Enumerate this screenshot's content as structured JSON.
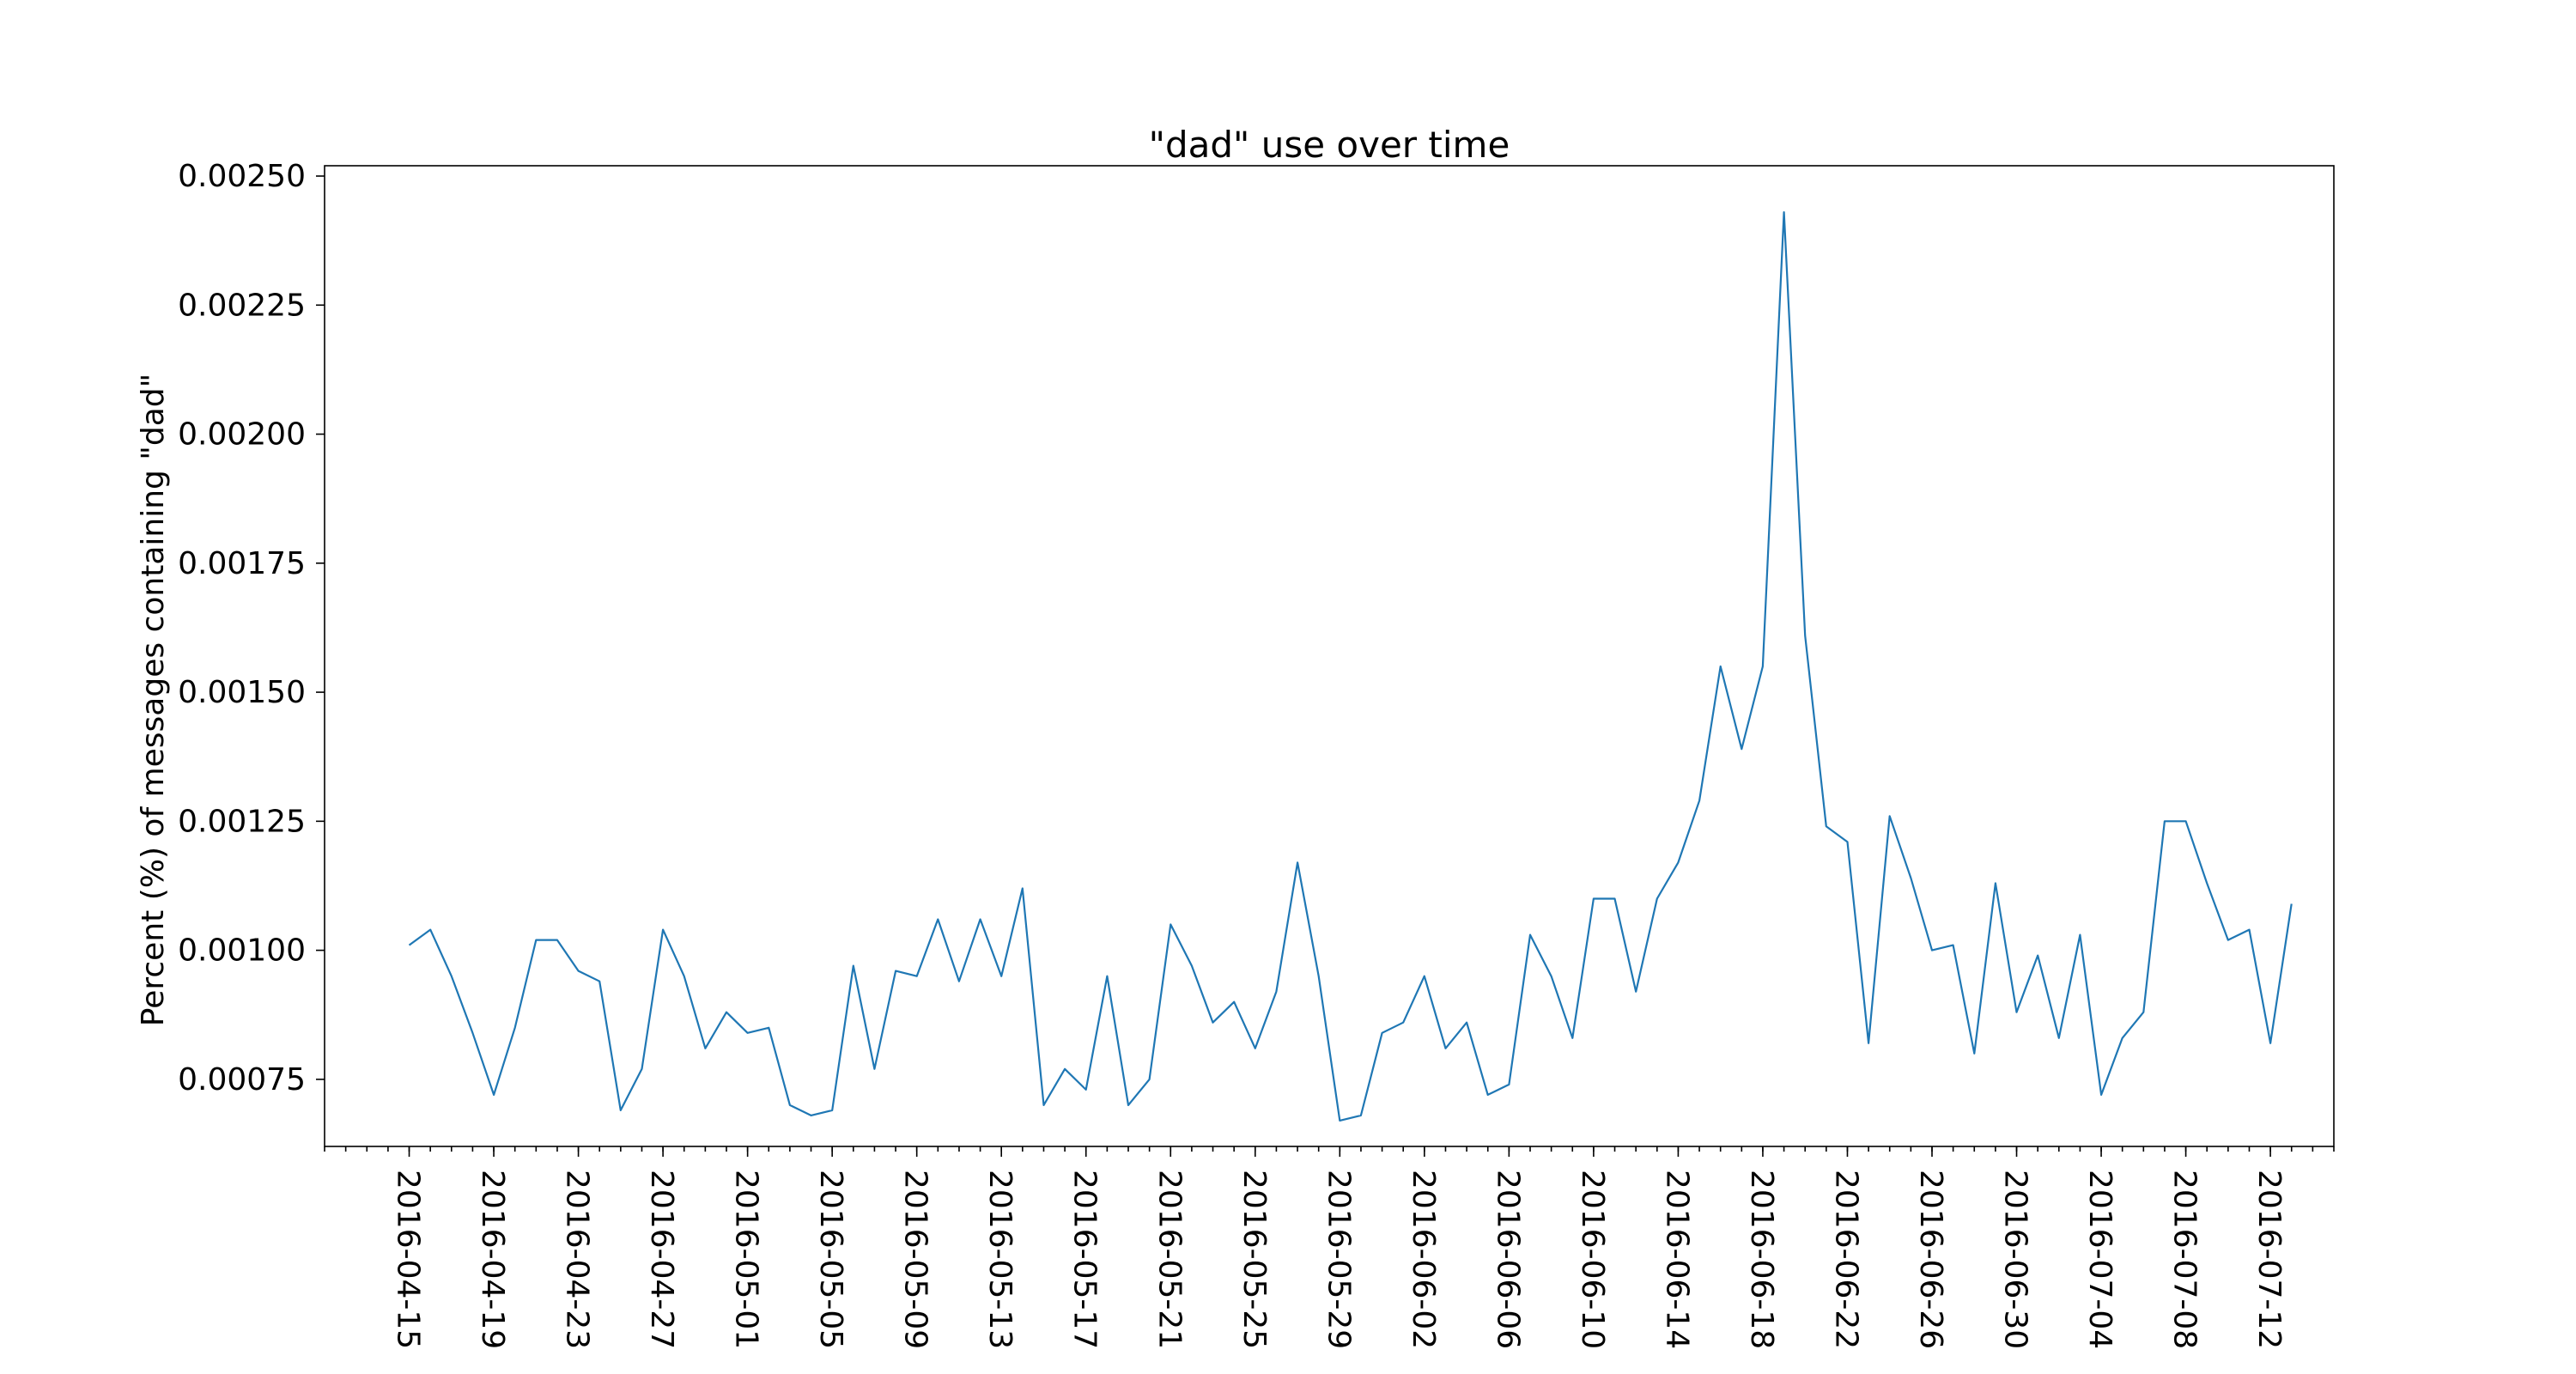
{
  "chart_data": {
    "type": "line",
    "title": "\"dad\" use over time",
    "xlabel": "",
    "ylabel": "Percent (%) of messages containing \"dad\"",
    "xlim": [
      "2016-04-11",
      "2016-07-15"
    ],
    "ylim": [
      0.00062,
      0.00252
    ],
    "grid": false,
    "x_tick_labels": [
      "2016-04-15",
      "2016-04-19",
      "2016-04-23",
      "2016-04-27",
      "2016-05-01",
      "2016-05-05",
      "2016-05-09",
      "2016-05-13",
      "2016-05-17",
      "2016-05-21",
      "2016-05-25",
      "2016-05-29",
      "2016-06-02",
      "2016-06-06",
      "2016-06-10",
      "2016-06-14",
      "2016-06-18",
      "2016-06-22",
      "2016-06-26",
      "2016-06-30",
      "2016-07-04",
      "2016-07-08",
      "2016-07-12"
    ],
    "y_tick_labels": [
      "0.00075",
      "0.00100",
      "0.00125",
      "0.00150",
      "0.00175",
      "0.00200",
      "0.00225",
      "0.00250"
    ],
    "y_ticks": [
      0.00075,
      0.001,
      0.00125,
      0.0015,
      0.00175,
      0.002,
      0.00225,
      0.0025
    ],
    "x": [
      "2016-04-15",
      "2016-04-16",
      "2016-04-17",
      "2016-04-18",
      "2016-04-19",
      "2016-04-20",
      "2016-04-21",
      "2016-04-22",
      "2016-04-23",
      "2016-04-24",
      "2016-04-25",
      "2016-04-26",
      "2016-04-27",
      "2016-04-28",
      "2016-04-29",
      "2016-04-30",
      "2016-05-01",
      "2016-05-02",
      "2016-05-03",
      "2016-05-04",
      "2016-05-05",
      "2016-05-06",
      "2016-05-07",
      "2016-05-08",
      "2016-05-09",
      "2016-05-10",
      "2016-05-11",
      "2016-05-12",
      "2016-05-13",
      "2016-05-14",
      "2016-05-15",
      "2016-05-16",
      "2016-05-17",
      "2016-05-18",
      "2016-05-19",
      "2016-05-20",
      "2016-05-21",
      "2016-05-22",
      "2016-05-23",
      "2016-05-24",
      "2016-05-25",
      "2016-05-26",
      "2016-05-27",
      "2016-05-28",
      "2016-05-29",
      "2016-05-30",
      "2016-05-31",
      "2016-06-01",
      "2016-06-02",
      "2016-06-03",
      "2016-06-04",
      "2016-06-05",
      "2016-06-06",
      "2016-06-07",
      "2016-06-08",
      "2016-06-09",
      "2016-06-10",
      "2016-06-11",
      "2016-06-12",
      "2016-06-13",
      "2016-06-14",
      "2016-06-15",
      "2016-06-16",
      "2016-06-17",
      "2016-06-18",
      "2016-06-19",
      "2016-06-20",
      "2016-06-21",
      "2016-06-22",
      "2016-06-23",
      "2016-06-24",
      "2016-06-25",
      "2016-06-26",
      "2016-06-27",
      "2016-06-28",
      "2016-06-29",
      "2016-06-30",
      "2016-07-01",
      "2016-07-02",
      "2016-07-03",
      "2016-07-04",
      "2016-07-05",
      "2016-07-06",
      "2016-07-07",
      "2016-07-08",
      "2016-07-09",
      "2016-07-10",
      "2016-07-11",
      "2016-07-12",
      "2016-07-13"
    ],
    "series": [
      {
        "values": [
          0.00101,
          0.00104,
          0.00095,
          0.00084,
          0.00072,
          0.00085,
          0.00102,
          0.00102,
          0.00096,
          0.00094,
          0.00069,
          0.00077,
          0.00104,
          0.00095,
          0.00081,
          0.00088,
          0.00084,
          0.00085,
          0.0007,
          0.00068,
          0.00069,
          0.00097,
          0.00077,
          0.00096,
          0.00095,
          0.00106,
          0.00094,
          0.00106,
          0.00095,
          0.00112,
          0.0007,
          0.00077,
          0.00073,
          0.00095,
          0.0007,
          0.00075,
          0.00105,
          0.00097,
          0.00086,
          0.0009,
          0.00081,
          0.00092,
          0.00117,
          0.00095,
          0.00067,
          0.00068,
          0.00084,
          0.00086,
          0.00095,
          0.00081,
          0.00086,
          0.00072,
          0.00074,
          0.00103,
          0.00095,
          0.00083,
          0.0011,
          0.0011,
          0.00092,
          0.0011,
          0.00117,
          0.00129,
          0.00155,
          0.00139,
          0.00155,
          0.00243,
          0.00161,
          0.00124,
          0.00121,
          0.00082,
          0.00126,
          0.00114,
          0.001,
          0.00101,
          0.0008,
          0.00113,
          0.00088,
          0.00099,
          0.00083,
          0.00103,
          0.00072,
          0.00083,
          0.00088,
          0.00125,
          0.00125,
          0.00113,
          0.00102,
          0.00104,
          0.00082,
          0.00109
        ]
      }
    ],
    "colors": {
      "line": "#1f77b4",
      "axes": "#000000",
      "background": "#ffffff"
    }
  }
}
